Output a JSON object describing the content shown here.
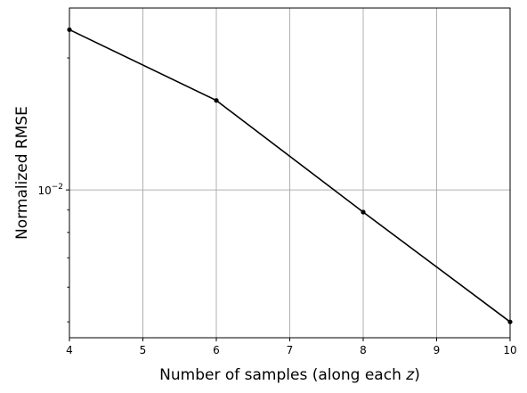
{
  "chart_data": {
    "type": "line",
    "title": "",
    "xlabel": "Number of samples (along each z)",
    "ylabel": "Normalized RMSE",
    "xlim": [
      4,
      10
    ],
    "ylim": [
      0.0046,
      0.026
    ],
    "yscale": "log",
    "grid": true,
    "x_ticks": [
      4,
      5,
      6,
      7,
      8,
      9,
      10
    ],
    "y_ticks": [
      {
        "value": 0.01,
        "label": "10^-2"
      }
    ],
    "series": [
      {
        "color": "#000000",
        "marker": "circle",
        "points": [
          {
            "x": 4,
            "y": 0.0232
          },
          {
            "x": 6,
            "y": 0.016
          },
          {
            "x": 8,
            "y": 0.0089
          },
          {
            "x": 10,
            "y": 0.005
          }
        ]
      }
    ]
  }
}
